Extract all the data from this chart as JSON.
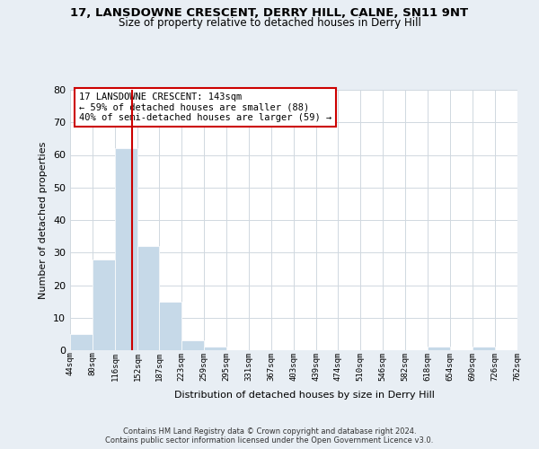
{
  "title1": "17, LANSDOWNE CRESCENT, DERRY HILL, CALNE, SN11 9NT",
  "title2": "Size of property relative to detached houses in Derry Hill",
  "xlabel": "Distribution of detached houses by size in Derry Hill",
  "ylabel": "Number of detached properties",
  "bin_edges": [
    44,
    80,
    116,
    152,
    187,
    223,
    259,
    295,
    331,
    367,
    403,
    439,
    474,
    510,
    546,
    582,
    618,
    654,
    690,
    726,
    762
  ],
  "bar_heights": [
    5,
    28,
    62,
    32,
    15,
    3,
    1,
    0,
    0,
    0,
    0,
    0,
    0,
    0,
    0,
    0,
    1,
    0,
    1,
    0
  ],
  "bar_color": "#c6d9e8",
  "bar_edgecolor": "#c6d9e8",
  "vline_x": 143,
  "vline_color": "#cc0000",
  "annotation_box_text": "17 LANSDOWNE CRESCENT: 143sqm\n← 59% of detached houses are smaller (88)\n40% of semi-detached houses are larger (59) →",
  "box_edgecolor": "#cc0000",
  "ylim": [
    0,
    80
  ],
  "yticks": [
    0,
    10,
    20,
    30,
    40,
    50,
    60,
    70,
    80
  ],
  "xtick_labels": [
    "44sqm",
    "80sqm",
    "116sqm",
    "152sqm",
    "187sqm",
    "223sqm",
    "259sqm",
    "295sqm",
    "331sqm",
    "367sqm",
    "403sqm",
    "439sqm",
    "474sqm",
    "510sqm",
    "546sqm",
    "582sqm",
    "618sqm",
    "654sqm",
    "690sqm",
    "726sqm",
    "762sqm"
  ],
  "footer_text": "Contains HM Land Registry data © Crown copyright and database right 2024.\nContains public sector information licensed under the Open Government Licence v3.0.",
  "background_color": "#e8eef4",
  "plot_bg_color": "#ffffff",
  "grid_color": "#d0d8e0"
}
